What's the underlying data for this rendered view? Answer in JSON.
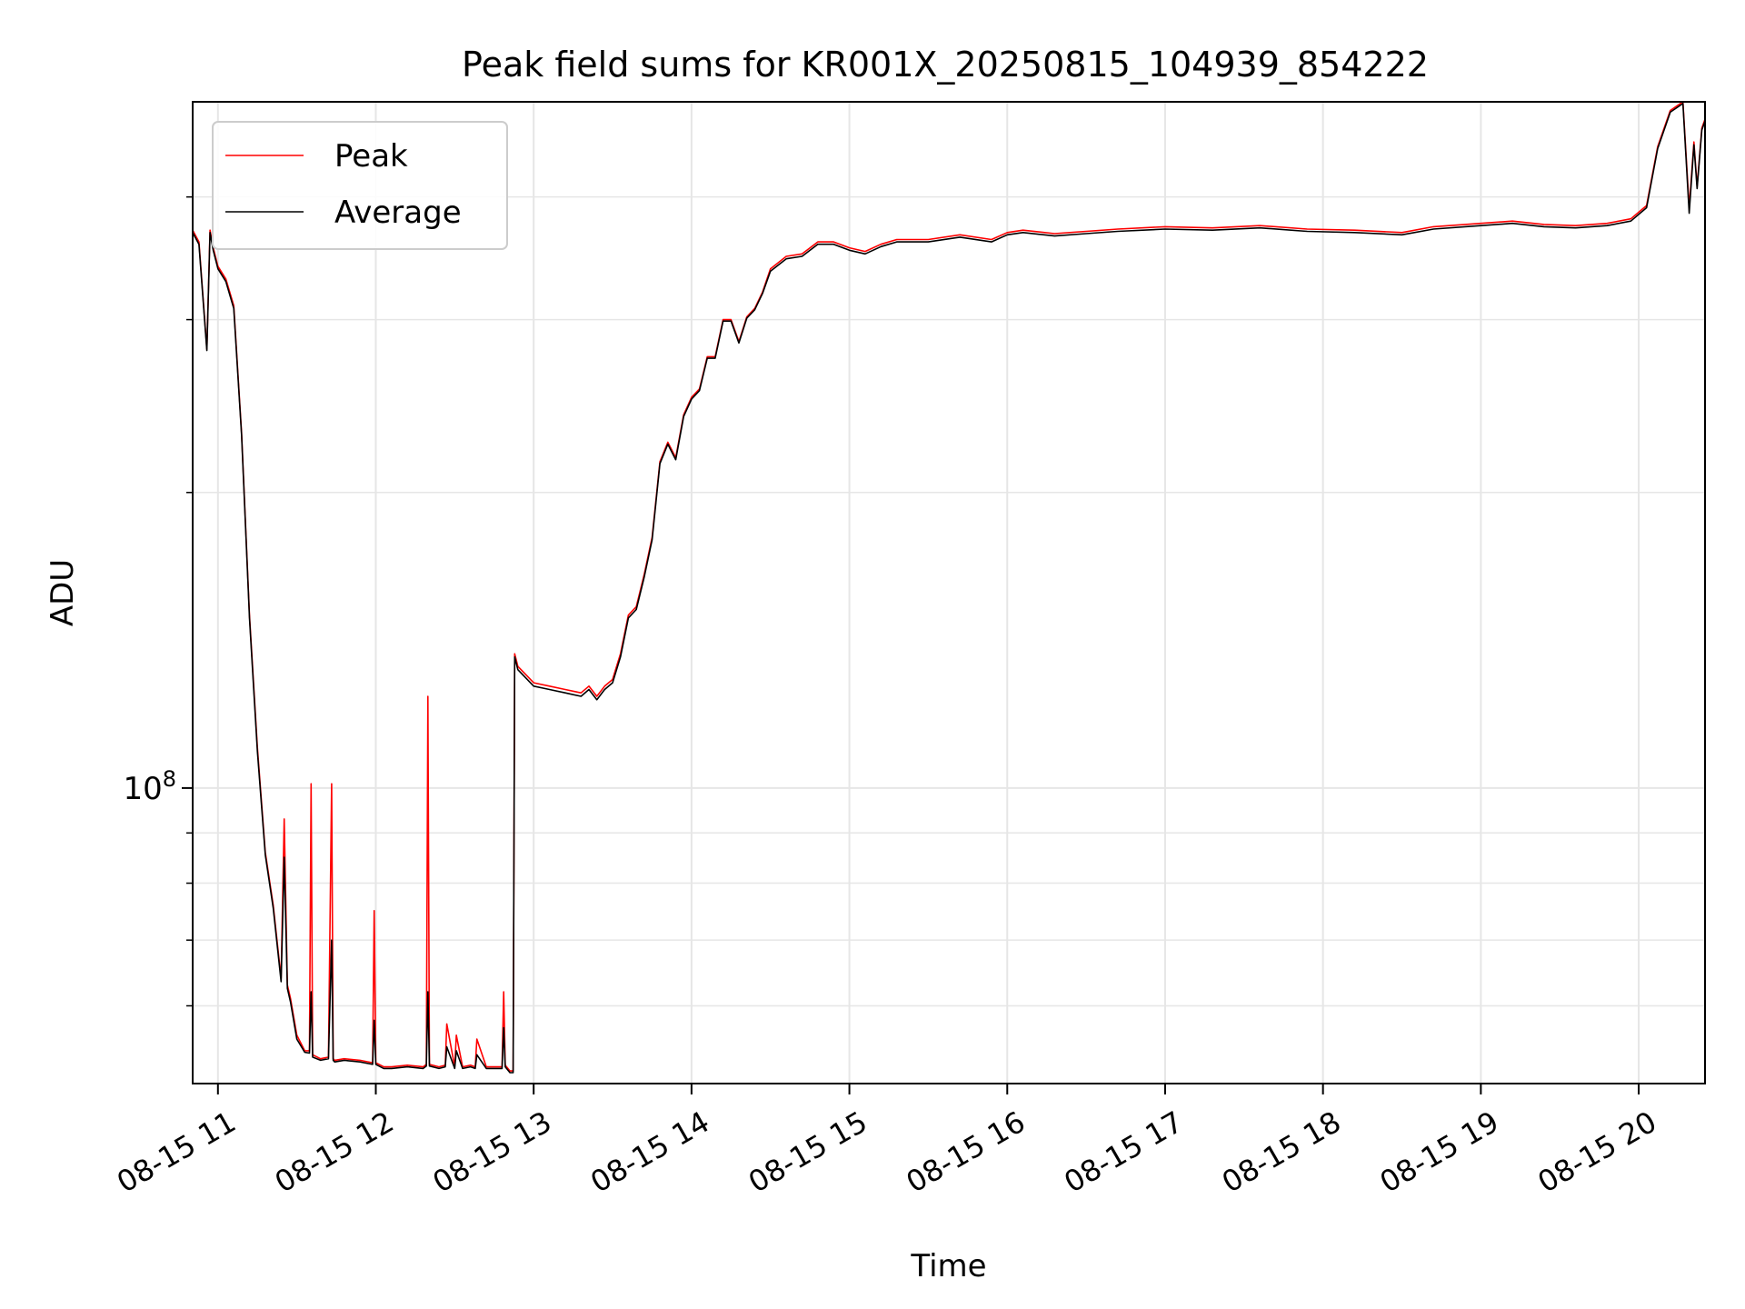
{
  "chart_data": {
    "type": "line",
    "title": "Peak field sums for KR001X_20250815_104939_854222",
    "xlabel": "Time",
    "ylabel": "ADU",
    "x_unit": "time of day, 2025-08-15 (hours)",
    "xlim": [
      10.84,
      20.42
    ],
    "ylim": [
      50000000,
      500000000
    ],
    "y_scale": "log",
    "grid": true,
    "legend_position": "top-left",
    "x_ticks": [
      11,
      12,
      13,
      14,
      15,
      16,
      17,
      18,
      19,
      20
    ],
    "x_tick_labels": [
      "08-15 11",
      "08-15 12",
      "08-15 13",
      "08-15 14",
      "08-15 15",
      "08-15 16",
      "08-15 17",
      "08-15 18",
      "08-15 19",
      "08-15 20"
    ],
    "y_major_ticks": [
      100000000
    ],
    "y_major_tick_labels": [
      {
        "base": "10",
        "exp": "8"
      }
    ],
    "y_minor_ticks": [
      60000000,
      70000000,
      80000000,
      90000000,
      200000000,
      300000000,
      400000000
    ],
    "series": [
      {
        "name": "Peak",
        "color": "#ff0000",
        "x": [
          10.84,
          10.88,
          10.93,
          10.95,
          10.97,
          11.0,
          11.05,
          11.1,
          11.15,
          11.2,
          11.25,
          11.3,
          11.35,
          11.4,
          11.42,
          11.44,
          11.46,
          11.5,
          11.55,
          11.58,
          11.59,
          11.6,
          11.65,
          11.7,
          11.72,
          11.73,
          11.74,
          11.8,
          11.9,
          11.98,
          11.99,
          12.0,
          12.05,
          12.1,
          12.2,
          12.3,
          12.32,
          12.33,
          12.34,
          12.4,
          12.44,
          12.45,
          12.5,
          12.51,
          12.55,
          12.6,
          12.63,
          12.64,
          12.7,
          12.8,
          12.81,
          12.82,
          12.85,
          12.87,
          12.88,
          12.9,
          13.0,
          13.1,
          13.2,
          13.3,
          13.35,
          13.4,
          13.45,
          13.5,
          13.55,
          13.6,
          13.65,
          13.7,
          13.75,
          13.8,
          13.85,
          13.9,
          13.95,
          14.0,
          14.05,
          14.1,
          14.15,
          14.2,
          14.25,
          14.3,
          14.35,
          14.4,
          14.45,
          14.5,
          14.6,
          14.7,
          14.8,
          14.9,
          15.0,
          15.1,
          15.2,
          15.3,
          15.5,
          15.7,
          15.9,
          16.0,
          16.1,
          16.3,
          16.5,
          16.7,
          17.0,
          17.3,
          17.6,
          17.9,
          18.2,
          18.5,
          18.7,
          19.0,
          19.2,
          19.4,
          19.6,
          19.8,
          19.95,
          20.05,
          20.12,
          20.2,
          20.28,
          20.32,
          20.35,
          20.37,
          20.4,
          20.42
        ],
        "y": [
          370000000,
          360000000,
          280000000,
          370000000,
          355000000,
          340000000,
          330000000,
          310000000,
          230000000,
          150000000,
          110000000,
          86000000,
          76000000,
          64000000,
          93000000,
          63000000,
          61000000,
          56000000,
          54000000,
          54000000,
          101000000,
          53500000,
          53000000,
          53200000,
          101000000,
          53000000,
          52800000,
          53000000,
          52800000,
          52500000,
          75000000,
          52500000,
          52000000,
          52000000,
          52200000,
          52000000,
          52300000,
          124000000,
          52300000,
          52000000,
          52200000,
          57500000,
          52000000,
          56000000,
          52000000,
          52200000,
          52000000,
          55500000,
          52000000,
          52000000,
          62000000,
          52200000,
          51500000,
          51500000,
          137000000,
          133000000,
          128000000,
          127000000,
          126000000,
          125000000,
          127000000,
          124000000,
          127000000,
          129000000,
          137000000,
          150000000,
          153000000,
          165000000,
          180000000,
          215000000,
          225000000,
          217000000,
          240000000,
          250000000,
          255000000,
          275000000,
          275000000,
          300000000,
          300000000,
          285000000,
          302000000,
          308000000,
          320000000,
          338000000,
          348000000,
          350000000,
          360000000,
          360000000,
          355000000,
          352000000,
          358000000,
          362000000,
          362000000,
          366000000,
          362000000,
          368000000,
          370000000,
          367000000,
          369000000,
          371000000,
          373000000,
          372000000,
          374000000,
          371000000,
          370000000,
          368000000,
          373000000,
          376000000,
          378000000,
          375000000,
          374000000,
          376000000,
          380000000,
          392000000,
          450000000,
          490000000,
          500000000,
          390000000,
          455000000,
          410000000,
          470000000,
          480000000
        ]
      },
      {
        "name": "Average",
        "color": "#000000",
        "x": [
          10.84,
          10.88,
          10.93,
          10.95,
          10.97,
          11.0,
          11.05,
          11.1,
          11.15,
          11.2,
          11.25,
          11.3,
          11.35,
          11.4,
          11.42,
          11.44,
          11.46,
          11.5,
          11.55,
          11.58,
          11.59,
          11.6,
          11.65,
          11.7,
          11.72,
          11.73,
          11.74,
          11.8,
          11.9,
          11.98,
          11.99,
          12.0,
          12.05,
          12.1,
          12.2,
          12.3,
          12.32,
          12.33,
          12.34,
          12.4,
          12.44,
          12.45,
          12.5,
          12.51,
          12.55,
          12.6,
          12.63,
          12.64,
          12.7,
          12.8,
          12.81,
          12.82,
          12.85,
          12.87,
          12.88,
          12.9,
          13.0,
          13.1,
          13.2,
          13.3,
          13.35,
          13.4,
          13.45,
          13.5,
          13.55,
          13.6,
          13.65,
          13.7,
          13.75,
          13.8,
          13.85,
          13.9,
          13.95,
          14.0,
          14.05,
          14.1,
          14.15,
          14.2,
          14.25,
          14.3,
          14.35,
          14.4,
          14.45,
          14.5,
          14.6,
          14.7,
          14.8,
          14.9,
          15.0,
          15.1,
          15.2,
          15.3,
          15.5,
          15.7,
          15.9,
          16.0,
          16.1,
          16.3,
          16.5,
          16.7,
          17.0,
          17.3,
          17.6,
          17.9,
          18.2,
          18.5,
          18.7,
          19.0,
          19.2,
          19.4,
          19.6,
          19.8,
          19.95,
          20.05,
          20.12,
          20.2,
          20.28,
          20.32,
          20.35,
          20.37,
          20.4,
          20.42
        ],
        "y": [
          368000000,
          358000000,
          279000000,
          368000000,
          353000000,
          338000000,
          328000000,
          308000000,
          229000000,
          149000000,
          109000000,
          85500000,
          75500000,
          63500000,
          85000000,
          62500000,
          60500000,
          55500000,
          53800000,
          53700000,
          62000000,
          53200000,
          52800000,
          53000000,
          70000000,
          52800000,
          52600000,
          52800000,
          52600000,
          52300000,
          58000000,
          52300000,
          51800000,
          51800000,
          52000000,
          51800000,
          52100000,
          62000000,
          52100000,
          51800000,
          52000000,
          54500000,
          51800000,
          54000000,
          51800000,
          52000000,
          51800000,
          53500000,
          51800000,
          51800000,
          57000000,
          52000000,
          51300000,
          51300000,
          136000000,
          132000000,
          127000000,
          126000000,
          125000000,
          124000000,
          126000000,
          123000000,
          126000000,
          128000000,
          136000000,
          149000000,
          152000000,
          164000000,
          179000000,
          214000000,
          224000000,
          216000000,
          239000000,
          249000000,
          254000000,
          274000000,
          274000000,
          299000000,
          299000000,
          284000000,
          301000000,
          307000000,
          319000000,
          336000000,
          346000000,
          348000000,
          358000000,
          358000000,
          353000000,
          350000000,
          356000000,
          360000000,
          360000000,
          364000000,
          360000000,
          366000000,
          368000000,
          365000000,
          367000000,
          369000000,
          371000000,
          370000000,
          372000000,
          369000000,
          368000000,
          366000000,
          371000000,
          374000000,
          376000000,
          373000000,
          372000000,
          374000000,
          378000000,
          390000000,
          448000000,
          488000000,
          498000000,
          385000000,
          452000000,
          408000000,
          468000000,
          478000000
        ]
      }
    ]
  }
}
